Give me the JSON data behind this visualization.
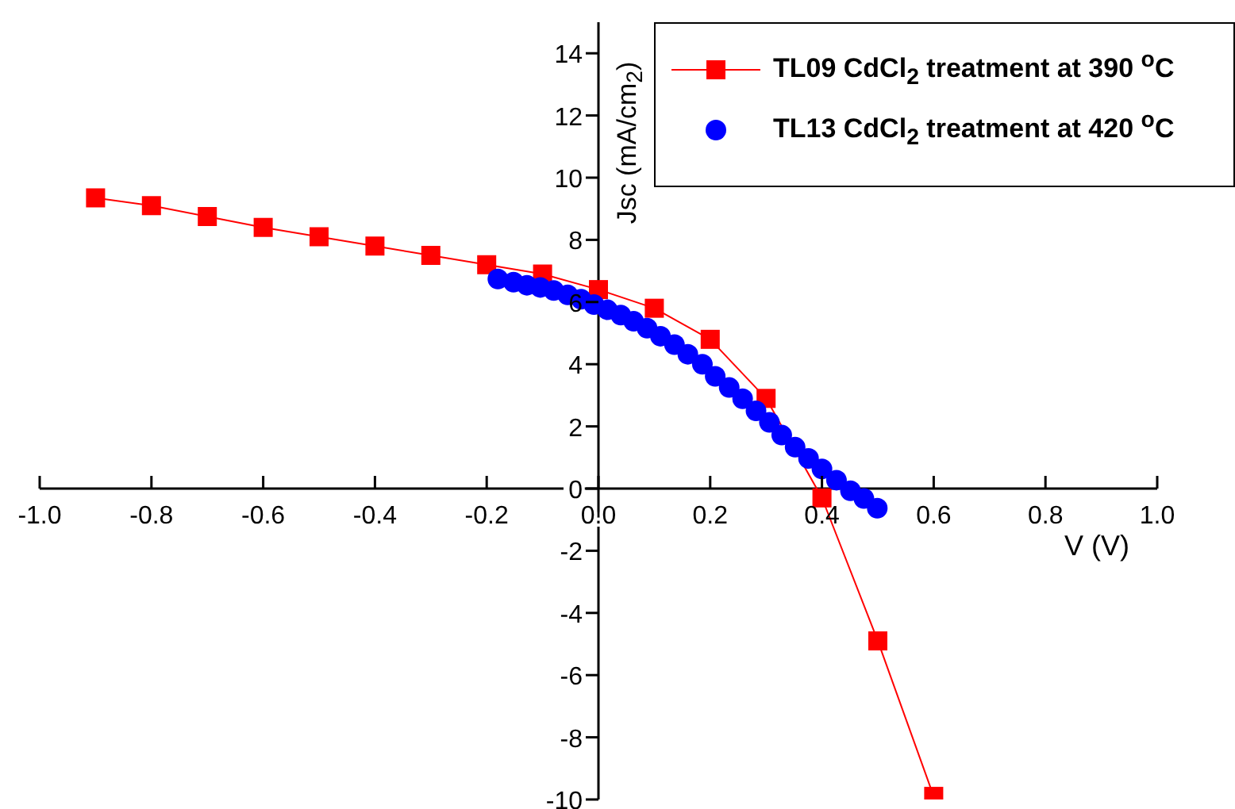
{
  "chart_data": {
    "type": "line",
    "xlabel": "V (V)",
    "ylabel": "Jsc (mA/cm$_{2}$)",
    "xlim": [
      -1,
      1
    ],
    "ylim": [
      -10,
      15
    ],
    "xticks": [
      {
        "value": -1,
        "label": "-1.0"
      },
      -0.8,
      -0.6,
      -0.4,
      -0.2,
      {
        "value": 0,
        "label": "0.0"
      },
      0.2,
      0.4,
      0.6,
      0.8,
      {
        "value": 1,
        "label": "1.0"
      }
    ],
    "yticks": [
      -10,
      -8,
      -6,
      -4,
      -2,
      0,
      2,
      4,
      6,
      8,
      10,
      12,
      14
    ],
    "legend": "top right",
    "grid": false,
    "line_style": "solid",
    "series": [
      {
        "name": "TL09 CdCl$_{2}$ treatment at 390 $^{o}$C",
        "color": "#ff0000",
        "marker": "square",
        "x": [
          -0.9,
          -0.8,
          -0.7,
          -0.6,
          -0.5,
          -0.4,
          -0.3,
          -0.2,
          -0.1,
          0,
          0.1,
          0.2,
          0.3,
          0.4,
          0.5,
          0.6
        ],
        "values": [
          9.35,
          9.1,
          8.75,
          8.4,
          8.1,
          7.8,
          7.5,
          7.2,
          6.9,
          6.4,
          5.8,
          4.8,
          2.9,
          -0.3,
          -4.9,
          -9.9
        ]
      },
      {
        "name": "TL13 CdCl$_{2}$ treatment at 420 $^{o}$C",
        "type": "scatter",
        "color": "#0000ff",
        "marker": "circle",
        "x": [
          -0.18,
          -0.152,
          -0.128,
          -0.104,
          -0.08,
          -0.055,
          -0.031,
          -0.008,
          0.016,
          0.04,
          0.063,
          0.087,
          0.111,
          0.136,
          0.16,
          0.186,
          0.209,
          0.234,
          0.258,
          0.282,
          0.306,
          0.328,
          0.352,
          0.376,
          0.4,
          0.426,
          0.451,
          0.475,
          0.499
        ],
        "values": [
          6.74,
          6.64,
          6.54,
          6.47,
          6.37,
          6.23,
          6.09,
          5.92,
          5.75,
          5.58,
          5.38,
          5.16,
          4.9,
          4.63,
          4.32,
          4.0,
          3.61,
          3.25,
          2.89,
          2.5,
          2.13,
          1.72,
          1.33,
          0.97,
          0.63,
          0.27,
          -0.07,
          -0.32,
          -0.63
        ]
      }
    ]
  }
}
